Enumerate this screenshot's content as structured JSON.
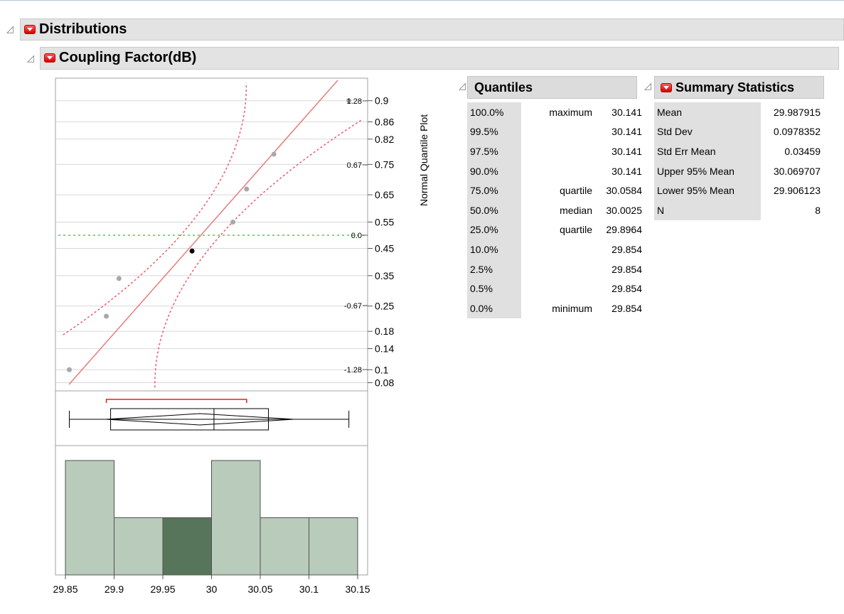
{
  "outline": {
    "title": "Distributions",
    "variable": "Coupling Factor(dB)"
  },
  "quantile_plot": {
    "axis_title": "Normal Quantile Plot",
    "prob_ticks": [
      "0.9",
      "0.86",
      "0.82",
      "0.75",
      "0.65",
      "0.55",
      "0.45",
      "0.35",
      "0.25",
      "0.18",
      "0.14",
      "0.1",
      "0.08"
    ],
    "z_ticks": [
      "1.28",
      "0.67",
      "0.0",
      "-0.67",
      "-1.28"
    ]
  },
  "chart_data": {
    "type": "bar",
    "title": "",
    "xlabel": "",
    "ylabel": "",
    "x_ticks": [
      "29.85",
      "29.9",
      "29.95",
      "30",
      "30.05",
      "30.1",
      "30.15"
    ],
    "xlim": [
      29.85,
      30.15
    ],
    "bins": [
      [
        29.85,
        29.9
      ],
      [
        29.9,
        29.95
      ],
      [
        29.95,
        30.0
      ],
      [
        30.0,
        30.05
      ],
      [
        30.05,
        30.1
      ],
      [
        30.1,
        30.15
      ]
    ],
    "counts": [
      2,
      1,
      1,
      2,
      1,
      1
    ],
    "highlighted_bin": 2,
    "colors": {
      "bar": "#b9cbbb",
      "highlight": "#57755a",
      "fit_line": "#e87b7b",
      "confidence": "#f05a6a",
      "zero_line": "#7ed67e"
    },
    "quantile_points": [
      {
        "x": 29.854,
        "p": 0.1
      },
      {
        "x": 29.892,
        "p": 0.22
      },
      {
        "x": 29.905,
        "p": 0.34
      },
      {
        "x": 29.98,
        "p": 0.44,
        "selected": true
      },
      {
        "x": 30.022,
        "p": 0.55
      },
      {
        "x": 30.036,
        "p": 0.67
      },
      {
        "x": 30.064,
        "p": 0.78
      },
      {
        "x": 30.141,
        "p": 0.9
      }
    ],
    "box_plot": {
      "min": 29.854,
      "q1": 29.8964,
      "median": 30.0025,
      "q3": 30.0584,
      "max": 30.141,
      "mean": 29.987915,
      "ci_lower": 29.906123,
      "ci_upper": 30.069707,
      "shortest_half": [
        29.892,
        30.036
      ]
    }
  },
  "quantiles": {
    "title": "Quantiles",
    "rows": [
      {
        "pct": "100.0%",
        "label": "maximum",
        "value": "30.141"
      },
      {
        "pct": "99.5%",
        "label": "",
        "value": "30.141"
      },
      {
        "pct": "97.5%",
        "label": "",
        "value": "30.141"
      },
      {
        "pct": "90.0%",
        "label": "",
        "value": "30.141"
      },
      {
        "pct": "75.0%",
        "label": "quartile",
        "value": "30.0584"
      },
      {
        "pct": "50.0%",
        "label": "median",
        "value": "30.0025"
      },
      {
        "pct": "25.0%",
        "label": "quartile",
        "value": "29.8964"
      },
      {
        "pct": "10.0%",
        "label": "",
        "value": "29.854"
      },
      {
        "pct": "2.5%",
        "label": "",
        "value": "29.854"
      },
      {
        "pct": "0.5%",
        "label": "",
        "value": "29.854"
      },
      {
        "pct": "0.0%",
        "label": "minimum",
        "value": "29.854"
      }
    ]
  },
  "summary": {
    "title": "Summary Statistics",
    "rows": [
      {
        "label": "Mean",
        "value": "29.987915"
      },
      {
        "label": "Std Dev",
        "value": "0.0978352"
      },
      {
        "label": "Std Err Mean",
        "value": "0.03459"
      },
      {
        "label": "Upper 95% Mean",
        "value": "30.069707"
      },
      {
        "label": "Lower 95% Mean",
        "value": "29.906123"
      },
      {
        "label": "N",
        "value": "8"
      }
    ]
  }
}
